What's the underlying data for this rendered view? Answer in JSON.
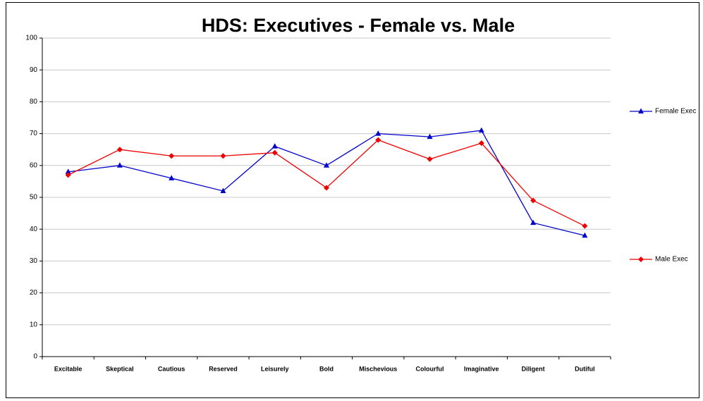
{
  "chart_data": {
    "type": "line",
    "title": "HDS:  Executives - Female vs. Male",
    "categories": [
      "Excitable",
      "Skeptical",
      "Cautious",
      "Reserved",
      "Leisurely",
      "Bold",
      "Mischevious",
      "Colourful",
      "Imaginative",
      "Diligent",
      "Dutiful"
    ],
    "series": [
      {
        "name": "Female Exec",
        "color": "#0000cc",
        "marker": "triangle",
        "values": [
          58,
          60,
          56,
          52,
          66,
          60,
          70,
          69,
          71,
          42,
          38
        ]
      },
      {
        "name": "Male Exec",
        "color": "#ee0000",
        "marker": "diamond",
        "values": [
          57,
          65,
          63,
          63,
          64,
          53,
          68,
          62,
          67,
          49,
          41
        ]
      }
    ],
    "ylim": [
      0,
      100
    ],
    "yticks": [
      0,
      10,
      20,
      30,
      40,
      50,
      60,
      70,
      80,
      90,
      100
    ],
    "grid": true,
    "legend": "right"
  }
}
